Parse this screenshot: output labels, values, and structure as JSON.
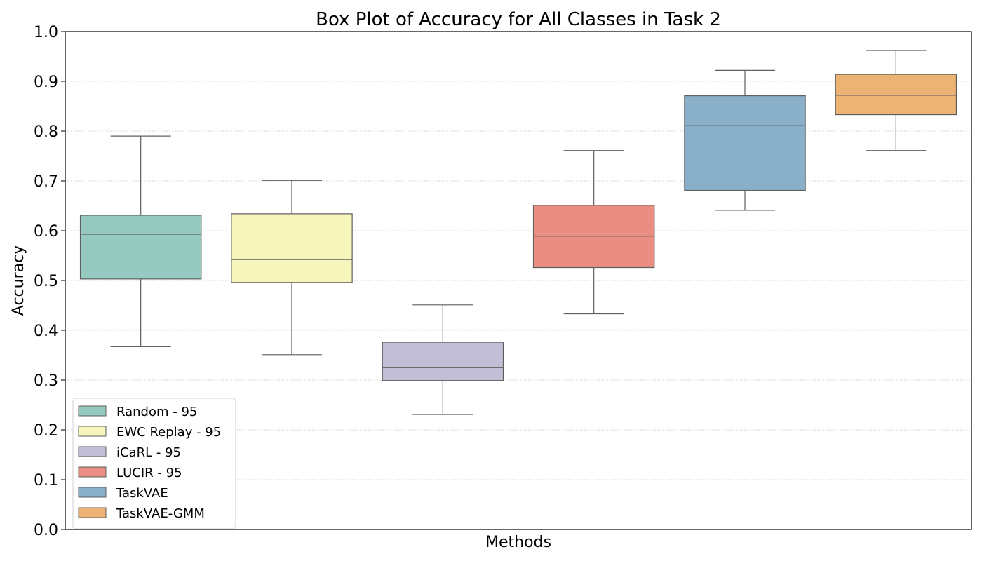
{
  "chart_data": {
    "type": "box",
    "title": "Box Plot of Accuracy for All Classes in Task 2",
    "xlabel": "Methods",
    "ylabel": "Accuracy",
    "ylim": [
      0,
      1.0
    ],
    "yticks": [
      "0.0",
      "0.1",
      "0.2",
      "0.3",
      "0.4",
      "0.5",
      "0.6",
      "0.7",
      "0.8",
      "0.9",
      "1.0"
    ],
    "grid": "horizontal dotted",
    "legend_position": "lower-left",
    "series": [
      {
        "name": "Random - 95",
        "color": "#96cac1",
        "whisker_low": 0.367,
        "q1": 0.503,
        "median": 0.593,
        "q3": 0.631,
        "whisker_high": 0.79
      },
      {
        "name": "EWC Replay - 95",
        "color": "#f6f6bc",
        "whisker_low": 0.351,
        "q1": 0.496,
        "median": 0.542,
        "q3": 0.634,
        "whisker_high": 0.701
      },
      {
        "name": "iCaRL - 95",
        "color": "#c1bed6",
        "whisker_low": 0.231,
        "q1": 0.299,
        "median": 0.325,
        "q3": 0.376,
        "whisker_high": 0.451
      },
      {
        "name": "LUCIR - 95",
        "color": "#ea8e83",
        "whisker_low": 0.433,
        "q1": 0.526,
        "median": 0.589,
        "q3": 0.651,
        "whisker_high": 0.761
      },
      {
        "name": "TaskVAE",
        "color": "#8aafc9",
        "whisker_low": 0.641,
        "q1": 0.681,
        "median": 0.811,
        "q3": 0.871,
        "whisker_high": 0.922
      },
      {
        "name": "TaskVAE-GMM",
        "color": "#ecb374",
        "whisker_low": 0.761,
        "q1": 0.833,
        "median": 0.872,
        "q3": 0.914,
        "whisker_high": 0.962
      }
    ]
  }
}
